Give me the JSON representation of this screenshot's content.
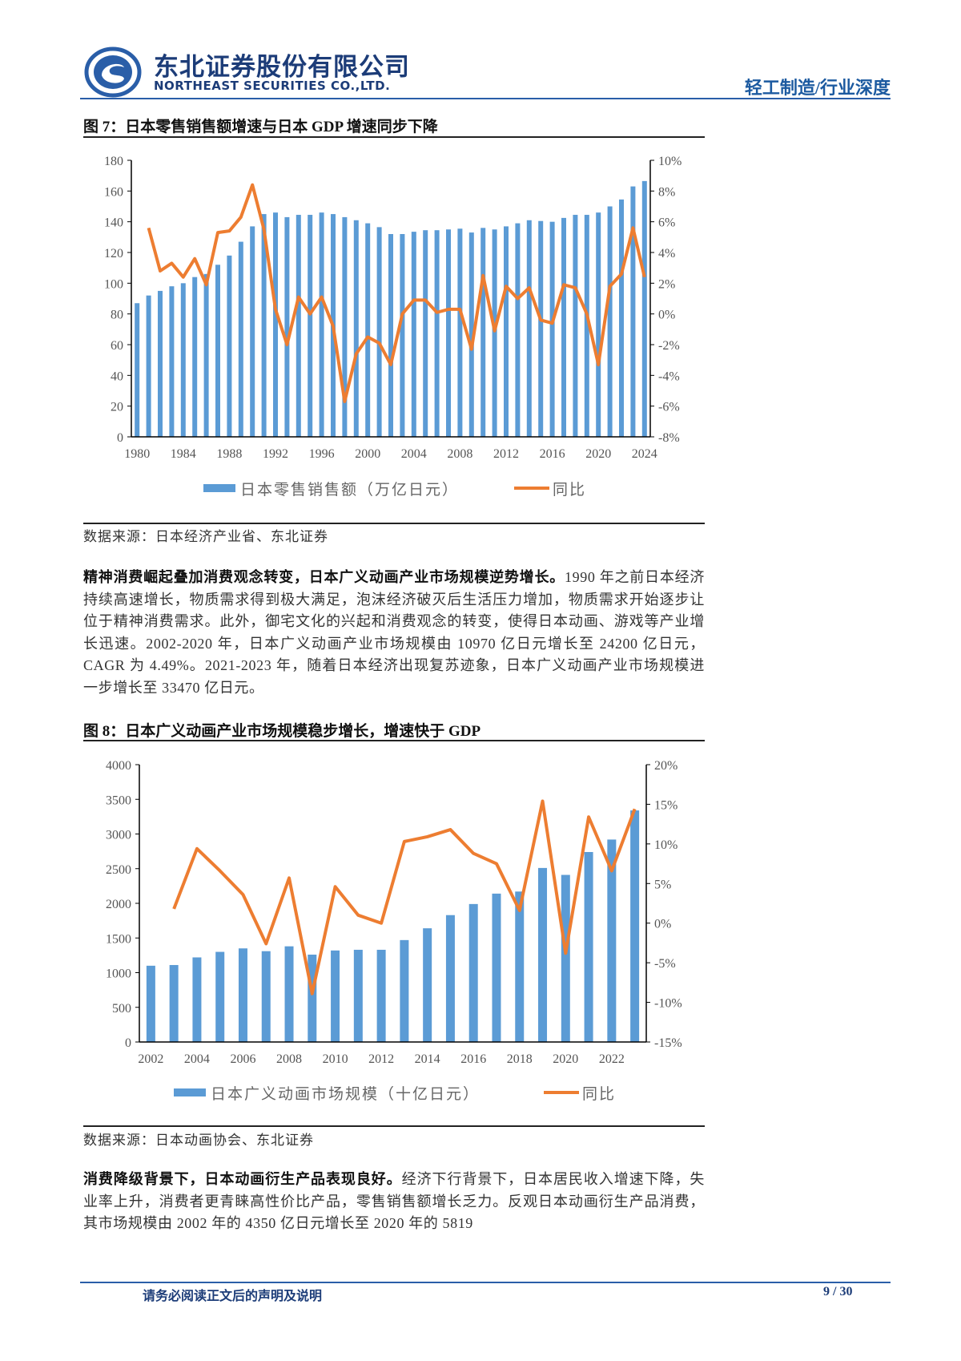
{
  "header": {
    "company_cn": "东北证券股份有限公司",
    "company_en": "NORTHEAST SECURITIES CO.,LTD.",
    "report_type": "轻工制造/行业深度",
    "brand_color": "#1c3c78"
  },
  "figure7": {
    "title": "图 7：日本零售销售额增速与日本 GDP 增速同步下降",
    "source": "数据来源：日本经济产业省、东北证券"
  },
  "paragraph1": {
    "lead": "精神消费崛起叠加消费观念转变，日本广义动画产业市场规模逆势增长。",
    "body": "1990 年之前日本经济持续高速增长，物质需求得到极大满足，泡沫经济破灭后生活压力增加，物质需求开始逐步让位于精神消费需求。此外，御宅文化的兴起和消费观念的转变，使得日本动画、游戏等产业增长迅速。2002-2020 年，日本广义动画产业市场规模由 10970 亿日元增长至 24200 亿日元，CAGR 为 4.49%。2021-2023 年，随着日本经济出现复苏迹象，日本广义动画产业市场规模进一步增长至 33470 亿日元。"
  },
  "figure8": {
    "title": "图 8：日本广义动画产业市场规模稳步增长，增速快于 GDP",
    "source": "数据来源：日本动画协会、东北证券"
  },
  "paragraph2": {
    "lead": "消费降级背景下，日本动画衍生产品表现良好。",
    "body": "经济下行背景下，日本居民收入增速下降，失业率上升，消费者更青睐高性价比产品，零售销售额增长乏力。反观日本动画衍生产品消费，其市场规模由 2002 年的 4350 亿日元增长至 2020 年的 5819"
  },
  "footer": {
    "note": "请务必阅读正文后的声明及说明",
    "page": "9 / 30"
  },
  "chart_data": [
    {
      "type": "bar+line",
      "categories": [
        1980,
        1981,
        1982,
        1983,
        1984,
        1985,
        1986,
        1987,
        1988,
        1989,
        1990,
        1991,
        1992,
        1993,
        1994,
        1995,
        1996,
        1997,
        1998,
        1999,
        2000,
        2001,
        2002,
        2003,
        2004,
        2005,
        2006,
        2007,
        2008,
        2009,
        2010,
        2011,
        2012,
        2013,
        2014,
        2015,
        2016,
        2017,
        2018,
        2019,
        2020,
        2021,
        2022,
        2023,
        2024
      ],
      "xticks": [
        "1980",
        "1984",
        "1988",
        "1992",
        "1996",
        "2000",
        "2004",
        "2008",
        "2012",
        "2016",
        "2020",
        "2024"
      ],
      "series": [
        {
          "name": "日本零售销售额（万亿日元）",
          "type": "bar",
          "axis": "left",
          "color": "#5b9bd5",
          "values": [
            87,
            92,
            95,
            98,
            100,
            104,
            106,
            112,
            118,
            127,
            137,
            145,
            146,
            143,
            144.5,
            144.5,
            146,
            145,
            143,
            141,
            139,
            136.5,
            132,
            132,
            133.5,
            134.5,
            134.5,
            135,
            135.5,
            133,
            136,
            135,
            137,
            139,
            141,
            140.5,
            140,
            142.5,
            144.5,
            144.5,
            146,
            150,
            154.5,
            163,
            166.5
          ]
        },
        {
          "name": "同比",
          "type": "line",
          "axis": "right",
          "color": "#ed7d31",
          "values": [
            null,
            5.6,
            2.8,
            3.3,
            2.4,
            3.6,
            1.9,
            5.3,
            5.4,
            6.3,
            8.4,
            5.5,
            0.3,
            -2.0,
            1.1,
            0.0,
            1.1,
            -0.8,
            -5.7,
            -2.6,
            -1.5,
            -1.9,
            -3.3,
            0.0,
            0.9,
            0.9,
            0.1,
            0.3,
            0.3,
            -2.3,
            2.5,
            -1.1,
            1.8,
            1.0,
            1.7,
            -0.4,
            -0.6,
            1.9,
            1.7,
            0.0,
            -3.3,
            1.8,
            2.6,
            5.6,
            2.4
          ]
        }
      ],
      "ylim_left": [
        0,
        180
      ],
      "yticks_left": [
        "0",
        "20",
        "40",
        "60",
        "80",
        "100",
        "120",
        "140",
        "160",
        "180"
      ],
      "ylim_right": [
        -8,
        10
      ],
      "yticks_right": [
        "-8%",
        "-6%",
        "-4%",
        "-2%",
        "0%",
        "2%",
        "4%",
        "6%",
        "8%",
        "10%"
      ],
      "legend": "bottom",
      "grid": false
    },
    {
      "type": "bar+line",
      "categories": [
        2002,
        2003,
        2004,
        2005,
        2006,
        2007,
        2008,
        2009,
        2010,
        2011,
        2012,
        2013,
        2014,
        2015,
        2016,
        2017,
        2018,
        2019,
        2020,
        2021,
        2022,
        2023
      ],
      "xticks": [
        "2002",
        "2004",
        "2006",
        "2008",
        "2010",
        "2012",
        "2014",
        "2016",
        "2018",
        "2020",
        "2022"
      ],
      "series": [
        {
          "name": "日本广义动画市场规模（十亿日元）",
          "type": "bar",
          "axis": "left",
          "color": "#5b9bd5",
          "values": [
            1100,
            1110,
            1220,
            1300,
            1350,
            1310,
            1380,
            1260,
            1320,
            1330,
            1330,
            1470,
            1640,
            1830,
            1990,
            2140,
            2170,
            2510,
            2410,
            2740,
            2920,
            3340
          ]
        },
        {
          "name": "同比",
          "type": "line",
          "axis": "right",
          "color": "#ed7d31",
          "values": [
            null,
            1.8,
            9.4,
            6.6,
            3.6,
            -2.6,
            5.7,
            -8.9,
            4.6,
            1.0,
            0.0,
            10.3,
            10.9,
            11.8,
            8.8,
            7.5,
            1.6,
            15.4,
            -3.8,
            13.4,
            6.6,
            14.4
          ]
        }
      ],
      "ylim_left": [
        0,
        4000
      ],
      "yticks_left": [
        "0",
        "500",
        "1000",
        "1500",
        "2000",
        "2500",
        "3000",
        "3500",
        "4000"
      ],
      "ylim_right": [
        -15,
        20
      ],
      "yticks_right": [
        "-15%",
        "-10%",
        "-5%",
        "0%",
        "5%",
        "10%",
        "15%",
        "20%"
      ],
      "legend": "bottom",
      "grid": false
    }
  ]
}
